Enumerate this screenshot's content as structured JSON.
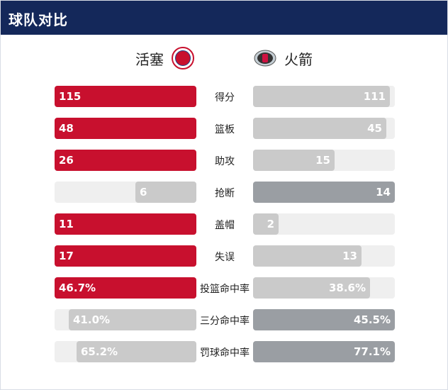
{
  "header": {
    "title": "球队对比"
  },
  "teams": {
    "home": {
      "name": "活塞",
      "logo_icon": "pistons-logo",
      "color": "#c8102e"
    },
    "away": {
      "name": "火箭",
      "logo_icon": "rockets-logo",
      "color": "#9a9ea3"
    }
  },
  "stats": [
    {
      "label": "得分",
      "home": "115",
      "away": "111",
      "home_value": 115,
      "away_value": 111,
      "leader": "home"
    },
    {
      "label": "篮板",
      "home": "48",
      "away": "45",
      "home_value": 48,
      "away_value": 45,
      "leader": "home"
    },
    {
      "label": "助攻",
      "home": "26",
      "away": "15",
      "home_value": 26,
      "away_value": 15,
      "leader": "home"
    },
    {
      "label": "抢断",
      "home": "6",
      "away": "14",
      "home_value": 6,
      "away_value": 14,
      "leader": "away"
    },
    {
      "label": "盖帽",
      "home": "11",
      "away": "2",
      "home_value": 11,
      "away_value": 2,
      "leader": "home"
    },
    {
      "label": "失误",
      "home": "17",
      "away": "13",
      "home_value": 17,
      "away_value": 13,
      "leader": "home"
    },
    {
      "label": "投篮命中率",
      "home": "46.7%",
      "away": "38.6%",
      "home_value": 46.7,
      "away_value": 38.6,
      "leader": "home"
    },
    {
      "label": "三分命中率",
      "home": "41.0%",
      "away": "45.5%",
      "home_value": 41.0,
      "away_value": 45.5,
      "leader": "away"
    },
    {
      "label": "罚球命中率",
      "home": "65.2%",
      "away": "77.1%",
      "home_value": 65.2,
      "away_value": 77.1,
      "leader": "away"
    }
  ],
  "colors": {
    "header_bg": "#14285a",
    "home_win": "#c8102e",
    "lose": "#cacaca",
    "away_win": "#9a9ea3",
    "track": "#efefef"
  }
}
